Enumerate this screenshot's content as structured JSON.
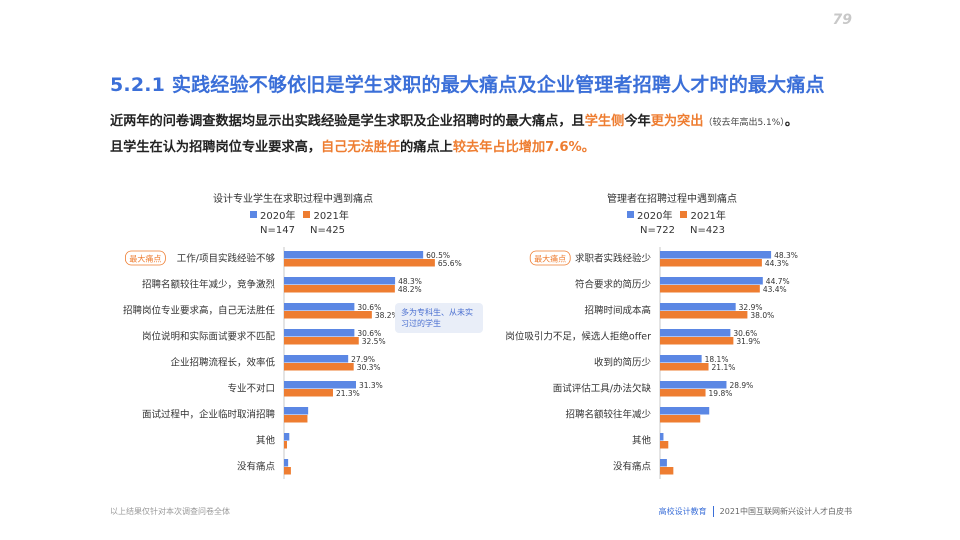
{
  "page_number": "79",
  "section_title": "5.2.1 实践经验不够依旧是学生求职的最大痛点及企业管理者招聘人才时的最大痛点",
  "intro": {
    "line1": [
      {
        "text": "近两年的问卷调查数据均显示出实践经验是学生求职及企业招聘时的最大痛点，且",
        "style": "normal"
      },
      {
        "text": "学生侧",
        "style": "hl"
      },
      {
        "text": "今年",
        "style": "normal"
      },
      {
        "text": "更为突出",
        "style": "hl"
      },
      {
        "text": "（较去年高出5.1%）",
        "style": "small"
      },
      {
        "text": "。",
        "style": "normal"
      }
    ],
    "line2": [
      {
        "text": "且学生在认为招聘岗位专业要求高，",
        "style": "normal"
      },
      {
        "text": "自己无法胜任",
        "style": "hl"
      },
      {
        "text": "的痛点上",
        "style": "normal"
      },
      {
        "text": "较去年占比增加7.6%。",
        "style": "hl"
      }
    ]
  },
  "colors": {
    "series_2020": "#5b87e4",
    "series_2021": "#ee7d31",
    "title": "#3b6fd8"
  },
  "tag_label": "最大痛点",
  "callout_text": "多为专科生、从未实习过的学生",
  "footer": {
    "left": "以上结果仅针对本次调查问卷全体",
    "brand": "高校设计教育",
    "report": "2021中国互联网新兴设计人才白皮书"
  },
  "chart_data": [
    {
      "type": "bar",
      "orientation": "horizontal",
      "title": "设计专业学生在求职过程中遇到痛点",
      "legend": [
        "2020年",
        "2021年"
      ],
      "n_labels": [
        "N=147",
        "N=425"
      ],
      "categories": [
        "工作/项目实践经验不够",
        "招聘名额较往年减少，竞争激烈",
        "招聘岗位专业要求高，自己无法胜任",
        "岗位说明和实际面试要求不匹配",
        "企业招聘流程长，效率低",
        "专业不对口",
        "面试过程中，企业临时取消招聘",
        "其他",
        "没有痛点"
      ],
      "series": [
        {
          "name": "2020年",
          "values": [
            60.5,
            48.3,
            30.6,
            30.6,
            27.9,
            31.3,
            10.5,
            2.3,
            1.8
          ],
          "labels": [
            "60.5%",
            "48.3%",
            "30.6%",
            "30.6%",
            "27.9%",
            "31.3%",
            "",
            "",
            ""
          ]
        },
        {
          "name": "2021年",
          "values": [
            65.6,
            48.2,
            38.2,
            32.5,
            30.3,
            21.3,
            10.2,
            1.3,
            3.0
          ],
          "labels": [
            "65.6%",
            "48.2%",
            "38.2%",
            "32.5%",
            "30.3%",
            "21.3%",
            "",
            "",
            ""
          ]
        }
      ],
      "tagged_index": 0,
      "xlim": [
        0,
        100
      ]
    },
    {
      "type": "bar",
      "orientation": "horizontal",
      "title": "管理者在招聘过程中遇到痛点",
      "legend": [
        "2020年",
        "2021年"
      ],
      "n_labels": [
        "N=722",
        "N=423"
      ],
      "categories": [
        "求职者实践经验少",
        "符合要求的简历少",
        "招聘时间成本高",
        "岗位吸引力不足，候选人拒绝offer",
        "收到的简历少",
        "面试评估工具/办法欠缺",
        "招聘名额较往年减少",
        "其他",
        "没有痛点"
      ],
      "series": [
        {
          "name": "2020年",
          "values": [
            48.3,
            44.7,
            32.9,
            30.6,
            18.1,
            28.9,
            21.4,
            1.5,
            3.0
          ],
          "labels": [
            "48.3%",
            "44.7%",
            "32.9%",
            "30.6%",
            "18.1%",
            "28.9%",
            "",
            "",
            ""
          ]
        },
        {
          "name": "2021年",
          "values": [
            44.3,
            43.4,
            38.0,
            31.9,
            21.1,
            19.8,
            17.5,
            3.6,
            5.8
          ],
          "labels": [
            "44.3%",
            "43.4%",
            "38.0%",
            "31.9%",
            "21.1%",
            "19.8%",
            "",
            "",
            ""
          ]
        }
      ],
      "tagged_index": 0,
      "xlim": [
        0,
        100
      ]
    }
  ]
}
